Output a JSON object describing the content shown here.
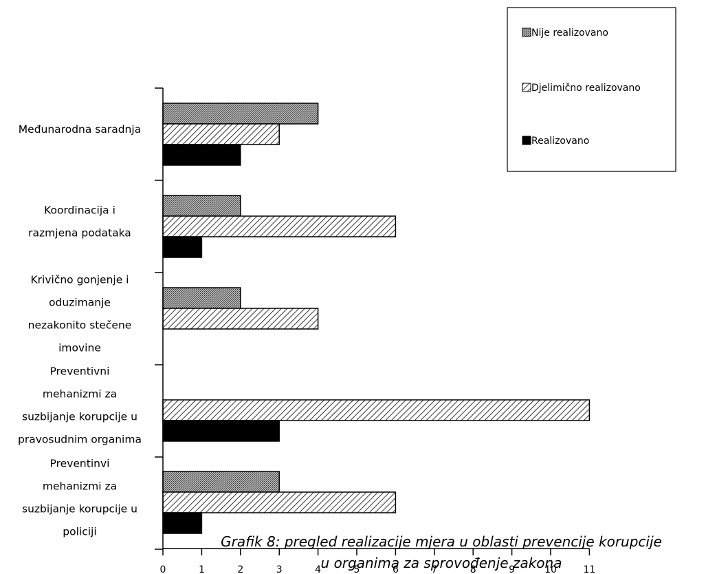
{
  "chart_data": {
    "type": "bar",
    "orientation": "horizontal",
    "categories": [
      [
        "Međunarodna saradnja"
      ],
      [
        "Koordinacija i",
        "razmjena podataka"
      ],
      [
        "Krivično gonjenje i",
        "oduzimanje",
        "nezakonito stečene",
        "imovine"
      ],
      [
        "Preventivni",
        "mehanizmi za",
        "suzbijanje korupcije u",
        "pravosudnim organima"
      ],
      [
        "Preventinvi",
        "mehanizmi za",
        "suzbijanje korupcije u",
        "policiji"
      ]
    ],
    "series": [
      {
        "name": "Nije realizovano",
        "values": [
          4,
          2,
          2,
          0,
          3
        ],
        "fill": "dotted-gray"
      },
      {
        "name": "Djelimično realizovano",
        "values": [
          3,
          6,
          4,
          11,
          6
        ],
        "fill": "diagonal-hatch"
      },
      {
        "name": "Realizovano",
        "values": [
          2,
          1,
          0,
          3,
          1
        ],
        "fill": "solid-black"
      }
    ],
    "xlim": [
      0,
      11
    ],
    "xticks": [
      "0",
      "1",
      "2",
      "3",
      "4",
      "5",
      "6",
      "7",
      "8",
      "9",
      "10",
      "11"
    ],
    "legend": {
      "position": "top-right",
      "order": [
        "Nije realizovano",
        "Djelimično realizovano",
        "Realizovano"
      ]
    },
    "grid": false,
    "caption": [
      "Grafik 8: pregled realizacije mjera u oblasti prevencije korupcije",
      "u organima za sprovođenje zakona"
    ],
    "colors": {
      "axis": "#000000",
      "dotted_fill": "#8c8c8c",
      "solid_fill": "#000000"
    }
  }
}
